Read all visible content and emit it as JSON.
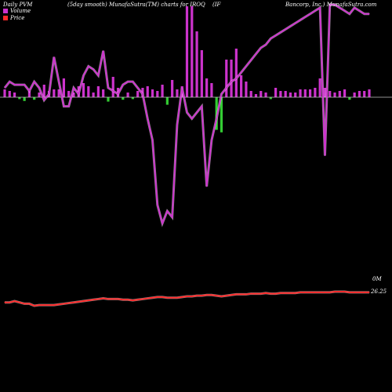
{
  "header": {
    "left": "Daily PVM",
    "middle": "(5day smooth) MunafaSutra(TM) charts for IROQ",
    "tag": "(IF",
    "right": "Bancorp, Inc.) MunafaSutra.com"
  },
  "legend": {
    "volume": "Volume",
    "price": "Price"
  },
  "colors": {
    "background": "#000000",
    "volume_up": "#cc33cc",
    "volume_down": "#33cc33",
    "pvm_line": "#cc33cc",
    "price_line": "#ff2a2a",
    "baseline": "#c0c0c0"
  },
  "chart_data": {
    "type": "line",
    "series": [
      {
        "name": "Volume",
        "kind": "bar",
        "values": [
          10,
          8,
          6,
          6,
          12,
          8,
          8,
          6,
          16,
          8,
          10,
          10,
          24,
          8,
          6,
          14,
          18,
          14,
          6,
          14,
          10,
          14,
          26,
          12,
          8,
          6,
          6,
          8,
          12,
          14,
          10,
          8,
          16,
          24,
          22,
          10,
          14,
          116,
          116,
          84,
          60,
          24,
          18,
          104,
          112,
          48,
          48,
          62,
          28,
          20,
          8,
          4,
          8,
          6,
          6,
          12,
          8,
          8,
          6,
          6,
          10,
          10,
          10,
          12,
          24,
          12,
          8,
          6,
          8,
          10,
          8,
          6,
          8,
          8,
          10
        ]
      },
      {
        "name": "PVM",
        "kind": "line",
        "values": [
          0.72,
          0.74,
          0.73,
          0.73,
          0.73,
          0.71,
          0.74,
          0.72,
          0.68,
          0.7,
          0.82,
          0.74,
          0.66,
          0.66,
          0.72,
          0.7,
          0.76,
          0.79,
          0.78,
          0.76,
          0.84,
          0.72,
          0.71,
          0.7,
          0.73,
          0.74,
          0.74,
          0.72,
          0.7,
          0.62,
          0.55,
          0.34,
          0.28,
          0.32,
          0.3,
          0.6,
          0.72,
          0.64,
          0.62,
          0.64,
          0.66,
          0.4,
          0.55,
          0.62,
          0.7,
          0.72,
          0.74,
          0.75,
          0.77,
          0.79,
          0.81,
          0.83,
          0.85,
          0.86,
          0.88,
          0.89,
          0.9,
          0.91,
          0.92,
          0.93,
          0.94,
          0.95,
          0.96,
          0.97,
          0.98,
          0.5,
          0.99,
          0.99,
          0.98,
          0.97,
          0.96,
          0.98,
          0.97,
          0.96,
          0.96
        ]
      },
      {
        "name": "Price",
        "kind": "line",
        "values": [
          26.1,
          26.1,
          26.12,
          26.1,
          26.08,
          26.08,
          26.05,
          26.06,
          26.06,
          26.06,
          26.06,
          26.07,
          26.08,
          26.09,
          26.1,
          26.11,
          26.12,
          26.13,
          26.14,
          26.15,
          26.16,
          26.15,
          26.15,
          26.15,
          26.14,
          26.14,
          26.13,
          26.14,
          26.15,
          26.16,
          26.17,
          26.18,
          26.18,
          26.17,
          26.17,
          26.17,
          26.18,
          26.19,
          26.19,
          26.2,
          26.2,
          26.21,
          26.21,
          26.2,
          26.19,
          26.2,
          26.21,
          26.22,
          26.22,
          26.22,
          26.23,
          26.23,
          26.23,
          26.24,
          26.23,
          26.23,
          26.24,
          26.24,
          26.24,
          26.24,
          26.25,
          26.25,
          26.25,
          26.25,
          26.25,
          26.25,
          26.25,
          26.26,
          26.26,
          26.26,
          26.25,
          26.25,
          26.25,
          26.25,
          26.25
        ]
      }
    ],
    "axis_labels": {
      "volume": "0M",
      "price": "26.25"
    }
  }
}
